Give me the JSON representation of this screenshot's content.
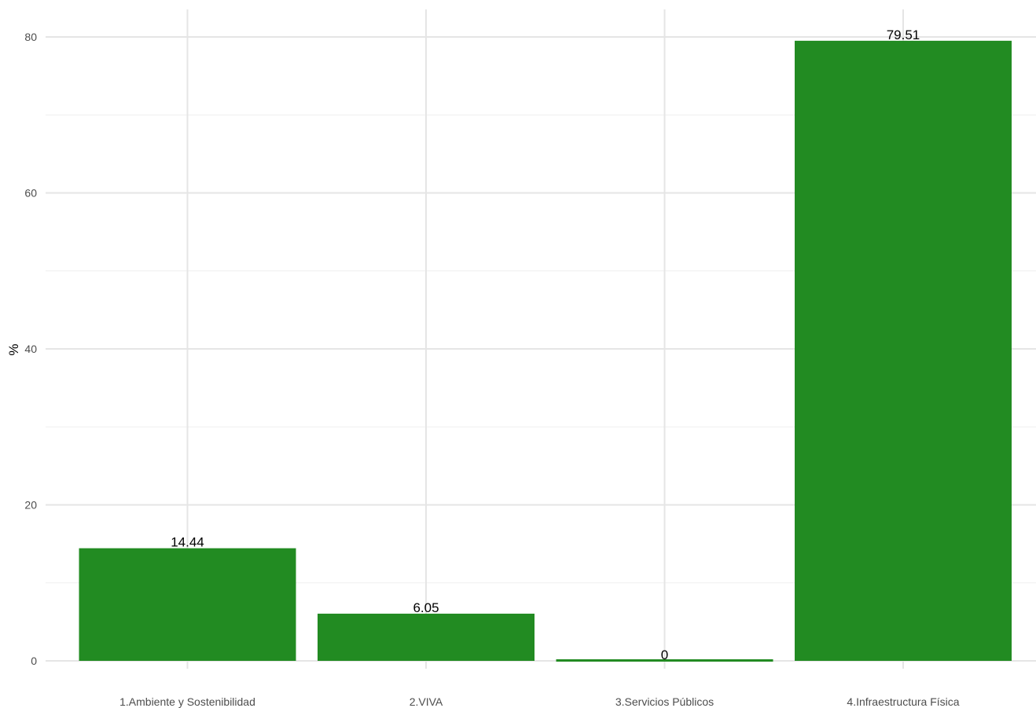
{
  "colors": {
    "bar": "#228b22",
    "grid": "#e5e5e5",
    "text": "#4d4d4d"
  },
  "chart_data": {
    "type": "bar",
    "title": "",
    "xlabel": "",
    "ylabel": "%",
    "categories": [
      "1.Ambiente y Sostenibilidad",
      "2.VIVA",
      "3.Servicios Públicos",
      "4.Infraestructura Física"
    ],
    "values": [
      14.44,
      6.05,
      0,
      79.51
    ],
    "data_labels": [
      "14.44",
      "6.05",
      "0",
      "79.51"
    ],
    "yticks": [
      "0",
      "20",
      "40",
      "60",
      "80"
    ],
    "ylim": [
      0,
      80
    ],
    "grid": true,
    "legend": "none"
  }
}
